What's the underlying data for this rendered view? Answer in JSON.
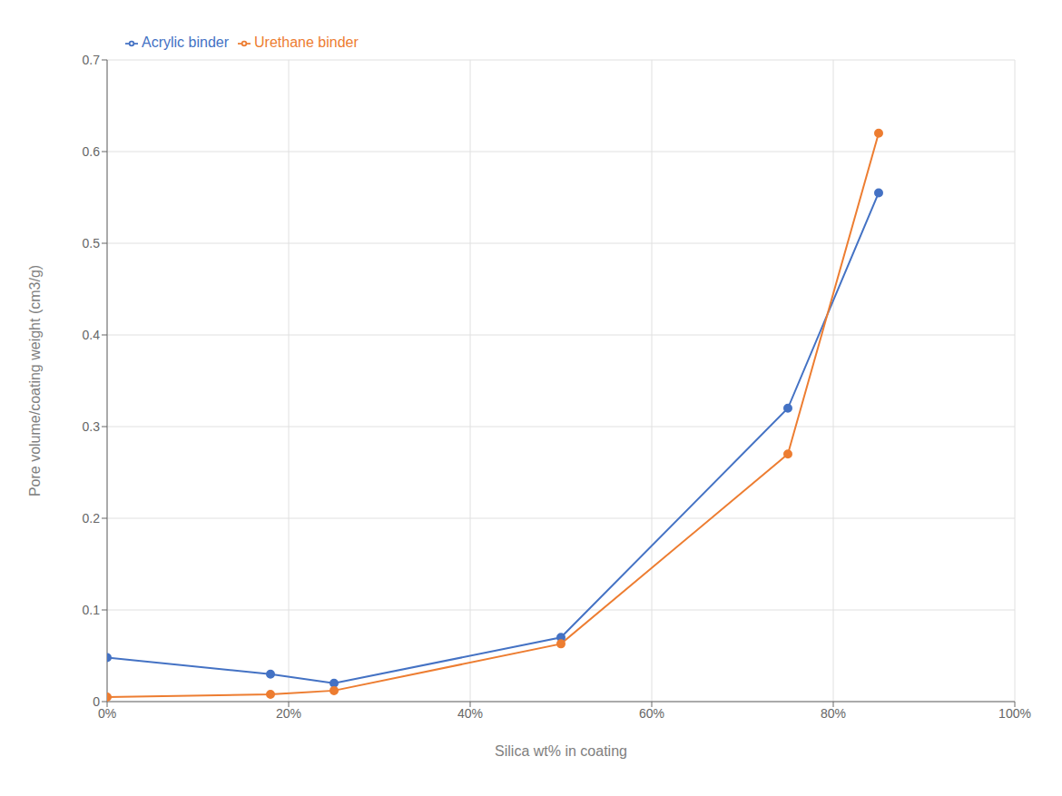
{
  "chart_data": {
    "type": "line",
    "x": [
      0,
      0.18,
      0.25,
      0.5,
      0.75,
      0.85
    ],
    "series": [
      {
        "name": "Acrylic binder",
        "color": "#4472C4",
        "values": [
          0.048,
          0.03,
          0.02,
          0.07,
          0.32,
          0.555
        ],
        "marker": "circle"
      },
      {
        "name": "Urethane binder",
        "color": "#ED7D31",
        "values": [
          0.005,
          0.008,
          0.012,
          0.063,
          0.27,
          0.62
        ],
        "marker": "circle"
      }
    ],
    "xlabel": "Silica wt% in coating",
    "ylabel": "Pore volume/coating weight (cm3/g)",
    "xlim": [
      0,
      1.0
    ],
    "ylim": [
      0,
      0.7
    ],
    "xticks": [
      {
        "value": 0,
        "label": "0%"
      },
      {
        "value": 0.2,
        "label": "20%"
      },
      {
        "value": 0.4,
        "label": "40%"
      },
      {
        "value": 0.6,
        "label": "60%"
      },
      {
        "value": 0.8,
        "label": "80%"
      },
      {
        "value": 1.0,
        "label": "100%"
      }
    ],
    "yticks": [
      0,
      0.1,
      0.2,
      0.3,
      0.4,
      0.5,
      0.6,
      0.7
    ],
    "grid": true,
    "legend": "upper left"
  }
}
